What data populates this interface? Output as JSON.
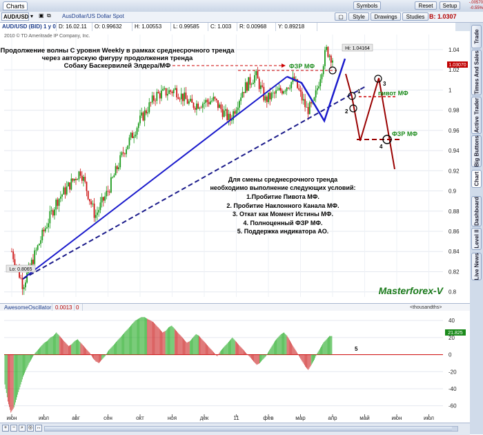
{
  "window": {
    "tab_label": "Charts"
  },
  "toolbar": {
    "symbol": "AUD/USD",
    "description": "AusDollar/US Dollar Spot",
    "style_label": "Style",
    "drawings_label": "Drawings",
    "studies_label": "Studies",
    "symbols_label": "Symbols",
    "reset_label": "Reset",
    "setup_label": "Setup",
    "bid_price": "B: 1.0307",
    "change_1": "-.00570",
    "change_2": "-0.55%"
  },
  "header": {
    "instrument": "AUD/USD (BID) 1 y 0",
    "date": "D: 16.02.11",
    "open": "O: 0.99632",
    "high": "H: 1.00553",
    "low": "L: 0.99585",
    "close": "C: 1.003",
    "range": "R: 0.00968",
    "y": "Y: 0.89218"
  },
  "copyright": "2010 © TD Ameritrade IP Company, Inc.",
  "side_tabs": [
    "Trade",
    "Times And Sales",
    "Active Trader",
    "Big Buttons",
    "Chart",
    "Dashboard",
    "Level II",
    "Live News"
  ],
  "annotations": {
    "title_line1": "Продолжение волны С уровня Weekly в рамках среднесрочного тренда",
    "title_line2": "через авторскую фигуру продолжения тренда",
    "title_line3": "Собаку Баскервилей Элдера/МФ",
    "fzr_top": "ФЗР МФ",
    "pivot": "пивот МФ",
    "fzr_right": "ФЗР МФ",
    "hi_label": "Hi: 1.04164",
    "lo_label": "Lo: 0.8065",
    "price_tag": "1.03070",
    "conditions_title1": "Для смены среднесрочного тренда",
    "conditions_title2": "необходимо выполнение следующих условий:",
    "cond1": "1.Пробитие Пивота МФ.",
    "cond2": "2. Пробитие Наклонного Канала МФ.",
    "cond3": "3. Откат как Момент Истины МФ.",
    "cond4": "4. Полноценный ФЗР МФ.",
    "cond5": "5. Поддержка индикатора АО.",
    "brand": "Masterforex-V",
    "n1": "1",
    "n2": "2",
    "n3": "3",
    "n4": "4",
    "n5": "5"
  },
  "indicator": {
    "name": "AwesomeOscillator",
    "value": "0.0013",
    "param": "0",
    "units": "<thousandths>",
    "last_tag": "21.825"
  },
  "chart_data": [
    {
      "type": "candlestick",
      "title": "AUD/USD (BID) 1 y 0",
      "x_ticks": [
        "июн",
        "июл",
        "авг",
        "сен",
        "окт",
        "ноя",
        "дек",
        "11",
        "фев",
        "мар",
        "апр",
        "май",
        "июн",
        "июл"
      ],
      "y_ticks": [
        0.8,
        0.82,
        0.84,
        0.86,
        0.88,
        0.9,
        0.92,
        0.94,
        0.96,
        0.98,
        1,
        1.02,
        1.04
      ],
      "ylim": [
        0.795,
        1.055
      ],
      "y_labels": [
        "0.8",
        "0.82",
        "0.84",
        "0.86",
        "0.88",
        "0.9",
        "0.92",
        "0.94",
        "0.96",
        "0.98",
        "1",
        "1.02",
        "1.04"
      ],
      "high": 1.04164,
      "low": 0.8065,
      "last": 1.0307,
      "bullish_color": "#1a9a1a",
      "bearish_color": "#cc1111",
      "path_key_points": [
        {
          "month": 0.0,
          "price": 0.84
        },
        {
          "month": 0.35,
          "price": 0.8065
        },
        {
          "month": 1.0,
          "price": 0.86
        },
        {
          "month": 1.4,
          "price": 0.89
        },
        {
          "month": 1.9,
          "price": 0.91
        },
        {
          "month": 2.15,
          "price": 0.92
        },
        {
          "month": 2.6,
          "price": 0.875
        },
        {
          "month": 3.0,
          "price": 0.9
        },
        {
          "month": 3.5,
          "price": 0.94
        },
        {
          "month": 4.0,
          "price": 0.97
        },
        {
          "month": 4.5,
          "price": 0.995
        },
        {
          "month": 5.1,
          "price": 1.0
        },
        {
          "month": 5.6,
          "price": 0.985
        },
        {
          "month": 6.3,
          "price": 0.99
        },
        {
          "month": 6.8,
          "price": 0.97
        },
        {
          "month": 7.2,
          "price": 1.0
        },
        {
          "month": 7.6,
          "price": 1.015
        },
        {
          "month": 7.9,
          "price": 0.99
        },
        {
          "month": 8.4,
          "price": 1.0
        },
        {
          "month": 8.8,
          "price": 1.01
        },
        {
          "month": 9.2,
          "price": 0.98
        },
        {
          "month": 9.4,
          "price": 0.985
        },
        {
          "month": 9.8,
          "price": 1.04
        },
        {
          "month": 10.0,
          "price": 1.031
        }
      ]
    },
    {
      "type": "bar",
      "title": "AwesomeOscillator",
      "ylabel": "<thousandths>",
      "y_ticks": [
        -60,
        -40,
        -20,
        0,
        20,
        40
      ],
      "ylim": [
        -70,
        45
      ],
      "positive_color": "#22aa22",
      "negative_color": "#cc2222",
      "values": [
        -35,
        -55,
        -68,
        -62,
        -50,
        -38,
        -26,
        -18,
        -10,
        -4,
        2,
        6,
        10,
        14,
        16,
        20,
        22,
        26,
        22,
        18,
        14,
        10,
        12,
        16,
        18,
        14,
        10,
        6,
        2,
        -4,
        -8,
        -10,
        -6,
        -2,
        4,
        8,
        12,
        16,
        20,
        24,
        28,
        32,
        36,
        40,
        42,
        44,
        44,
        42,
        40,
        38,
        34,
        30,
        26,
        28,
        32,
        34,
        30,
        26,
        22,
        18,
        14,
        16,
        20,
        24,
        22,
        18,
        14,
        10,
        6,
        2,
        -2,
        4,
        8,
        12,
        16,
        20,
        16,
        12,
        8,
        4,
        0,
        -4,
        -8,
        -12,
        -10,
        -6,
        -2,
        4,
        10,
        16,
        20,
        24,
        26,
        22,
        16,
        10,
        4,
        -2,
        -8,
        -14,
        -18,
        -12,
        -6,
        2,
        8,
        14,
        18,
        21.8
      ]
    }
  ]
}
